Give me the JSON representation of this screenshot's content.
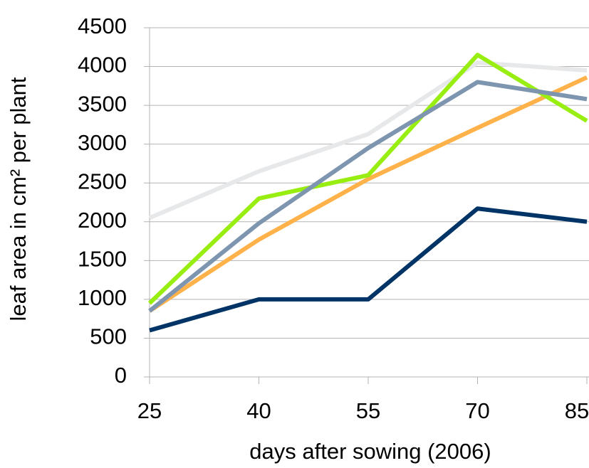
{
  "chart_data": {
    "type": "line",
    "xlabel": "days after sowing (2006)",
    "ylabel": "leaf area in cm² per plant",
    "x": [
      25,
      40,
      55,
      70,
      85
    ],
    "xlim": [
      25,
      85
    ],
    "xticks": [
      25,
      40,
      55,
      70,
      85
    ],
    "ylim": [
      0,
      4500
    ],
    "yticks": [
      0,
      500,
      1000,
      1500,
      2000,
      2500,
      3000,
      3500,
      4000,
      4500
    ],
    "grid": true,
    "series": [
      {
        "color": "#e6e8ea",
        "values": [
          2050,
          2650,
          3130,
          4050,
          3950
        ]
      },
      {
        "color": "#ffb24a",
        "values": [
          850,
          1770,
          2550,
          3210,
          3860
        ]
      },
      {
        "color": "#99ee11",
        "values": [
          950,
          2300,
          2600,
          4150,
          3300
        ]
      },
      {
        "color": "#7e95b0",
        "values": [
          850,
          1980,
          2950,
          3800,
          3580
        ]
      },
      {
        "color": "#003366",
        "values": [
          600,
          1000,
          1000,
          2170,
          2000
        ]
      }
    ]
  }
}
